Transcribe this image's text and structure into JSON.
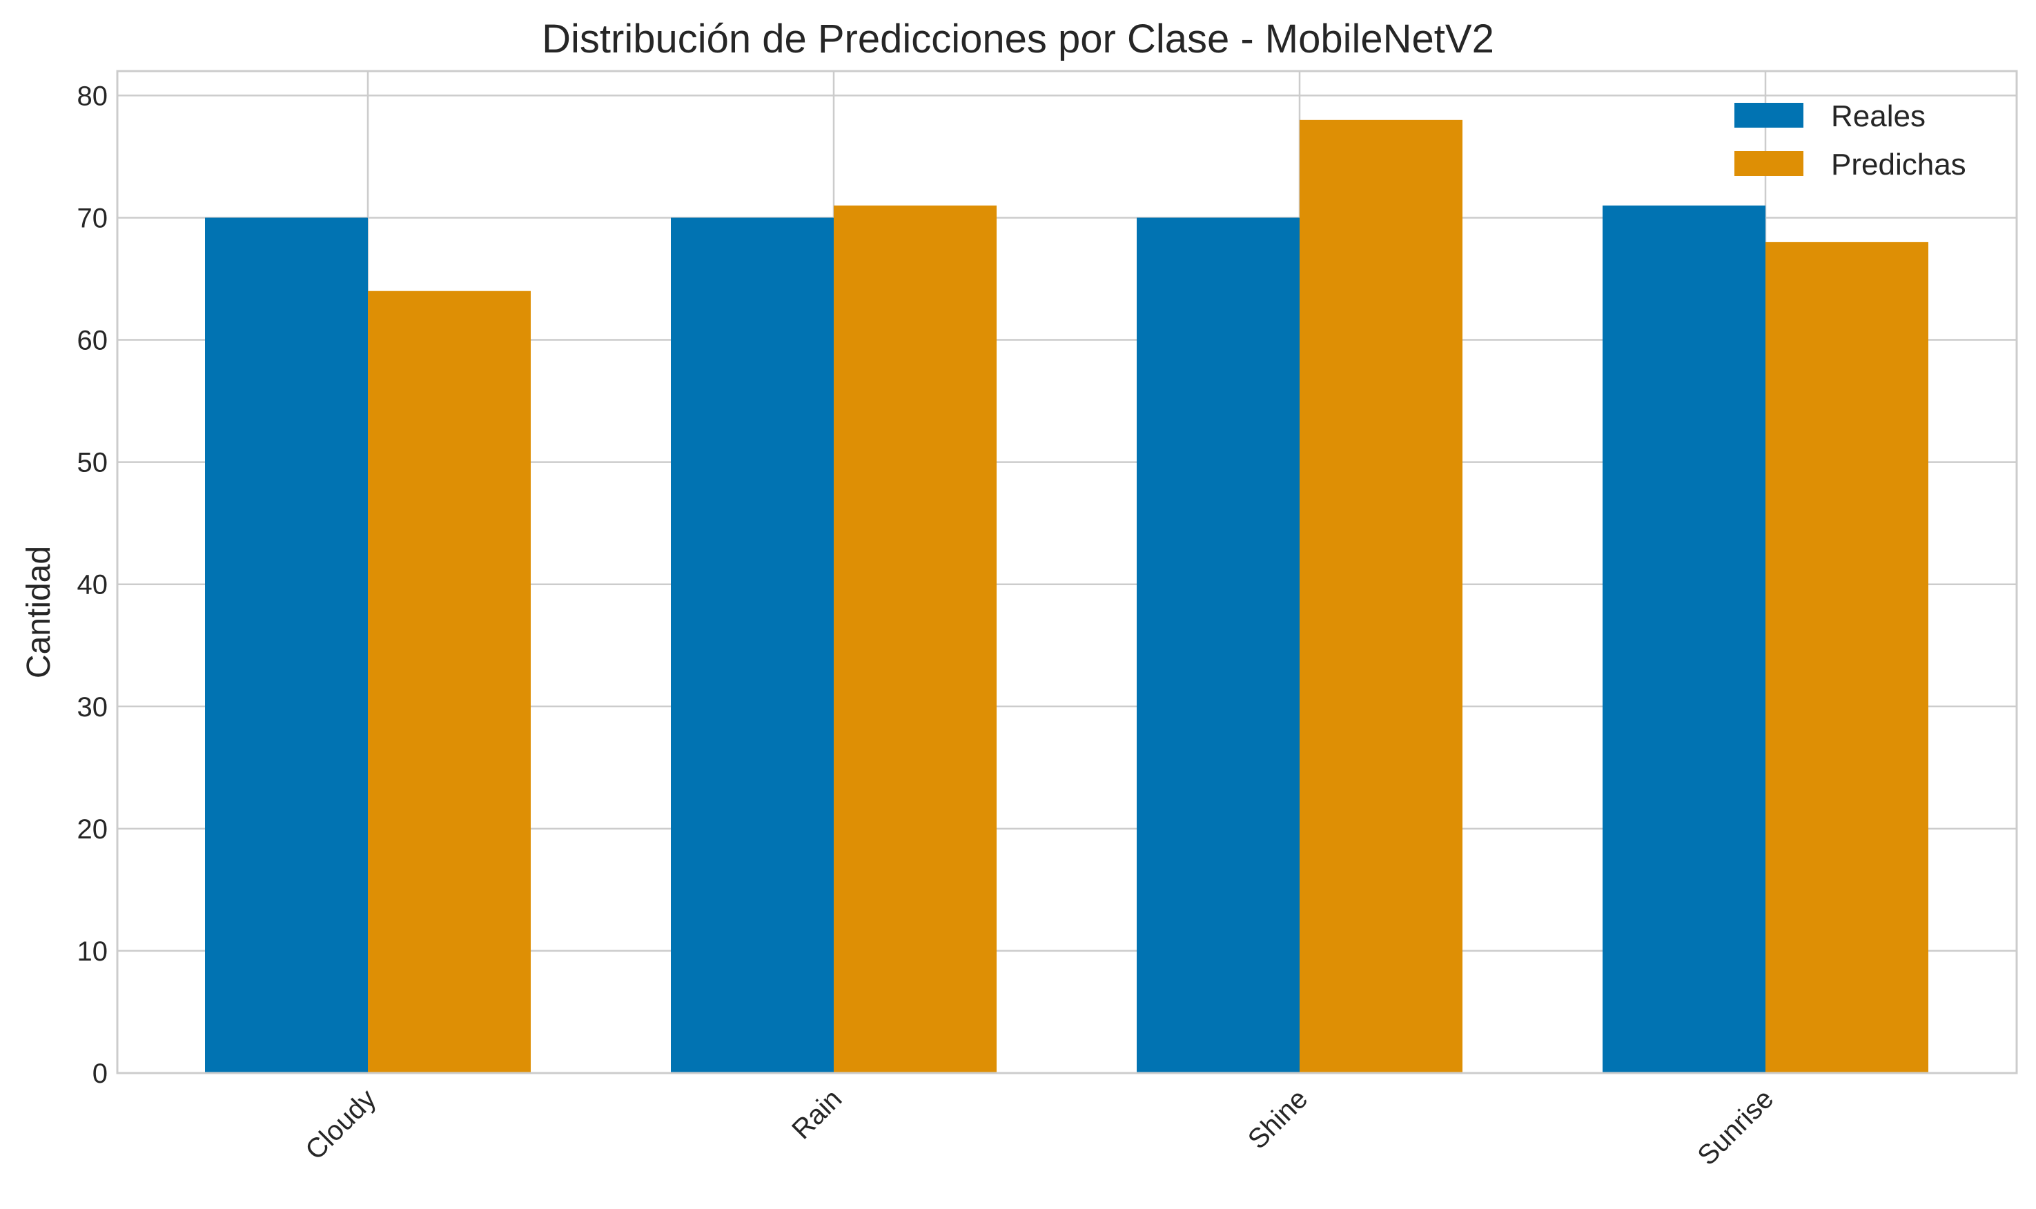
{
  "chart_data": {
    "type": "bar",
    "title": "Distribución de Predicciones por Clase - MobileNetV2",
    "xlabel": "",
    "ylabel": "Cantidad",
    "categories": [
      "Cloudy",
      "Rain",
      "Shine",
      "Sunrise"
    ],
    "series": [
      {
        "name": "Reales",
        "values": [
          70,
          70,
          70,
          71
        ],
        "color": "#0173b2"
      },
      {
        "name": "Predichas",
        "values": [
          64,
          71,
          78,
          68
        ],
        "color": "#de8f05"
      }
    ],
    "ylim": [
      0,
      82
    ],
    "yticks": [
      0,
      10,
      20,
      30,
      40,
      50,
      60,
      70,
      80
    ],
    "grid": true,
    "legend_position": "top-right",
    "xtick_rotation": "45 degrees"
  }
}
